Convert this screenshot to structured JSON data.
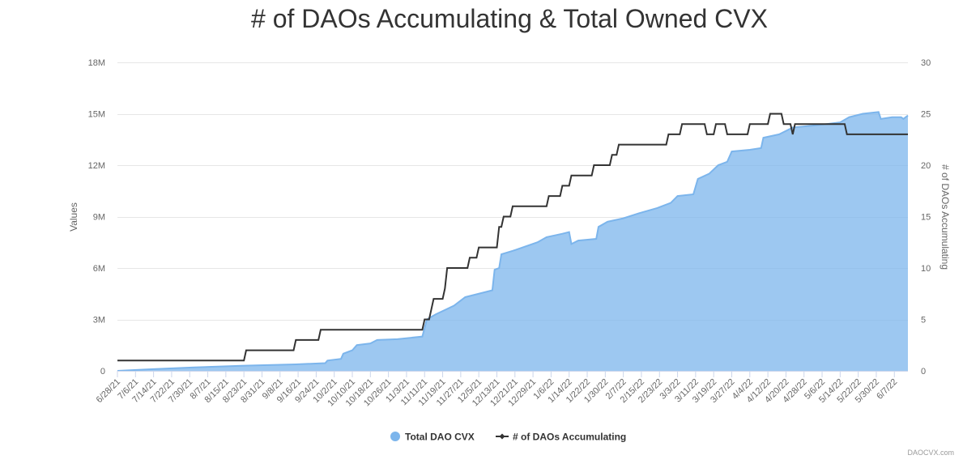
{
  "chart_data": {
    "type": "area",
    "title": "# of DAOs Accumulating & Total Owned CVX",
    "left_axis": {
      "title": "Values",
      "ylim": [
        0,
        18000000
      ],
      "ticks": [
        0,
        3000000,
        6000000,
        9000000,
        12000000,
        15000000,
        18000000
      ],
      "tick_labels": [
        "0",
        "3M",
        "6M",
        "9M",
        "12M",
        "15M",
        "18M"
      ]
    },
    "right_axis": {
      "title": "# of DAOs Accumulating",
      "ylim": [
        0,
        30
      ],
      "ticks": [
        0,
        5,
        10,
        15,
        20,
        25,
        30
      ],
      "tick_labels": [
        "0",
        "5",
        "10",
        "15",
        "20",
        "25",
        "30"
      ]
    },
    "x_axis": {
      "range": [
        "6/28/21",
        "6/13/22"
      ],
      "tick_labels": [
        "6/28/21",
        "7/6/21",
        "7/14/21",
        "7/22/21",
        "7/30/21",
        "8/7/21",
        "8/15/21",
        "8/23/21",
        "8/31/21",
        "9/8/21",
        "9/16/21",
        "9/24/21",
        "10/2/21",
        "10/10/21",
        "10/18/21",
        "10/26/21",
        "11/3/21",
        "11/11/21",
        "11/19/21",
        "11/27/21",
        "12/5/21",
        "12/13/21",
        "12/21/21",
        "12/29/21",
        "1/6/22",
        "1/14/22",
        "1/22/22",
        "1/30/22",
        "2/7/22",
        "2/15/22",
        "2/23/22",
        "3/3/22",
        "3/11/22",
        "3/19/22",
        "3/27/22",
        "4/4/22",
        "4/12/22",
        "4/20/22",
        "4/28/22",
        "5/6/22",
        "5/14/22",
        "5/22/22",
        "5/30/22",
        "6/7/22"
      ]
    },
    "grid": true,
    "legend_position": "bottom-center",
    "series": [
      {
        "name": "Total DAO CVX",
        "type": "area",
        "axis": "left",
        "color": "#7cb5ec",
        "points": [
          [
            "6/28/21",
            0
          ],
          [
            "7/14/21",
            100000
          ],
          [
            "8/1/21",
            200000
          ],
          [
            "8/23/21",
            300000
          ],
          [
            "9/15/21",
            380000
          ],
          [
            "9/28/21",
            450000
          ],
          [
            "9/29/21",
            600000
          ],
          [
            "10/5/21",
            700000
          ],
          [
            "10/6/21",
            1000000
          ],
          [
            "10/10/21",
            1200000
          ],
          [
            "10/12/21",
            1500000
          ],
          [
            "10/18/21",
            1600000
          ],
          [
            "10/21/21",
            1800000
          ],
          [
            "10/30/21",
            1850000
          ],
          [
            "11/10/21",
            2000000
          ],
          [
            "11/12/21",
            3000000
          ],
          [
            "11/16/21",
            3300000
          ],
          [
            "11/24/21",
            3800000
          ],
          [
            "11/29/21",
            4300000
          ],
          [
            "12/5/21",
            4500000
          ],
          [
            "12/11/21",
            4700000
          ],
          [
            "12/12/21",
            5900000
          ],
          [
            "12/14/21",
            6000000
          ],
          [
            "12/15/21",
            6800000
          ],
          [
            "12/20/21",
            7000000
          ],
          [
            "12/31/21",
            7500000
          ],
          [
            "1/4/22",
            7800000
          ],
          [
            "1/11/22",
            8000000
          ],
          [
            "1/14/22",
            8100000
          ],
          [
            "1/15/22",
            7400000
          ],
          [
            "1/18/22",
            7600000
          ],
          [
            "1/26/22",
            7700000
          ],
          [
            "1/27/22",
            8400000
          ],
          [
            "1/31/22",
            8700000
          ],
          [
            "2/7/22",
            8900000
          ],
          [
            "2/14/22",
            9200000
          ],
          [
            "2/22/22",
            9500000
          ],
          [
            "2/28/22",
            9800000
          ],
          [
            "3/3/22",
            10200000
          ],
          [
            "3/10/22",
            10300000
          ],
          [
            "3/12/22",
            11200000
          ],
          [
            "3/17/22",
            11500000
          ],
          [
            "3/21/22",
            12000000
          ],
          [
            "3/25/22",
            12200000
          ],
          [
            "3/27/22",
            12800000
          ],
          [
            "4/4/22",
            12900000
          ],
          [
            "4/9/22",
            13000000
          ],
          [
            "4/10/22",
            13600000
          ],
          [
            "4/17/22",
            13800000
          ],
          [
            "4/23/22",
            14200000
          ],
          [
            "5/1/22",
            14300000
          ],
          [
            "5/8/22",
            14400000
          ],
          [
            "5/14/22",
            14500000
          ],
          [
            "5/18/22",
            14800000
          ],
          [
            "5/24/22",
            15000000
          ],
          [
            "5/31/22",
            15100000
          ],
          [
            "6/1/22",
            14700000
          ],
          [
            "6/6/22",
            14800000
          ],
          [
            "6/10/22",
            14800000
          ],
          [
            "6/11/22",
            14700000
          ],
          [
            "6/13/22",
            14900000
          ]
        ]
      },
      {
        "name": "# of DAOs Accumulating",
        "type": "step-line",
        "axis": "right",
        "color": "#333333",
        "points": [
          [
            "6/28/21",
            1
          ],
          [
            "8/23/21",
            1
          ],
          [
            "8/24/21",
            2
          ],
          [
            "9/14/21",
            2
          ],
          [
            "9/15/21",
            3
          ],
          [
            "9/25/21",
            3
          ],
          [
            "9/26/21",
            4
          ],
          [
            "11/10/21",
            4
          ],
          [
            "11/11/21",
            5
          ],
          [
            "11/13/21",
            5
          ],
          [
            "11/14/21",
            6
          ],
          [
            "11/15/21",
            7
          ],
          [
            "11/19/21",
            7
          ],
          [
            "11/20/21",
            8
          ],
          [
            "11/21/21",
            10
          ],
          [
            "11/30/21",
            10
          ],
          [
            "12/1/21",
            11
          ],
          [
            "12/4/21",
            11
          ],
          [
            "12/5/21",
            12
          ],
          [
            "12/13/21",
            12
          ],
          [
            "12/14/21",
            14
          ],
          [
            "12/15/21",
            14
          ],
          [
            "12/16/21",
            15
          ],
          [
            "12/19/21",
            15
          ],
          [
            "12/20/21",
            16
          ],
          [
            "1/4/22",
            16
          ],
          [
            "1/5/22",
            17
          ],
          [
            "1/10/22",
            17
          ],
          [
            "1/11/22",
            18
          ],
          [
            "1/14/22",
            18
          ],
          [
            "1/15/22",
            19
          ],
          [
            "1/24/22",
            19
          ],
          [
            "1/25/22",
            20
          ],
          [
            "2/1/22",
            20
          ],
          [
            "2/2/22",
            21
          ],
          [
            "2/4/22",
            21
          ],
          [
            "2/5/22",
            22
          ],
          [
            "2/26/22",
            22
          ],
          [
            "2/27/22",
            23
          ],
          [
            "3/4/22",
            23
          ],
          [
            "3/5/22",
            24
          ],
          [
            "3/15/22",
            24
          ],
          [
            "3/16/22",
            23
          ],
          [
            "3/19/22",
            23
          ],
          [
            "3/20/22",
            24
          ],
          [
            "3/24/22",
            24
          ],
          [
            "3/25/22",
            23
          ],
          [
            "4/3/22",
            23
          ],
          [
            "4/4/22",
            24
          ],
          [
            "4/12/22",
            24
          ],
          [
            "4/13/22",
            25
          ],
          [
            "4/18/22",
            25
          ],
          [
            "4/19/22",
            24
          ],
          [
            "4/22/22",
            24
          ],
          [
            "4/23/22",
            23
          ],
          [
            "4/24/22",
            24
          ],
          [
            "5/16/22",
            24
          ],
          [
            "5/17/22",
            23
          ],
          [
            "6/13/22",
            23
          ]
        ]
      }
    ]
  },
  "credits": "DAOCVX.com"
}
